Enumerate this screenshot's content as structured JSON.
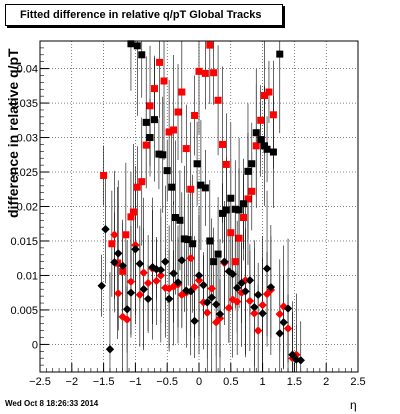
{
  "chart_data": {
    "type": "scatter",
    "title": "Fitted difference in relative q/pT  Global Tracks",
    "xlabel": "η",
    "ylabel": "difference in relative q/pT",
    "xlim": [
      -2.5,
      2.5
    ],
    "ylim": [
      -0.004,
      0.044
    ],
    "x_ticks": [
      -2.5,
      -2,
      -1.5,
      -1,
      -0.5,
      0,
      0.5,
      1,
      1.5,
      2,
      2.5
    ],
    "x_tick_labels": [
      "−2.5",
      "−2",
      "−1.5",
      "−1",
      "−0.5",
      "0",
      "0.5",
      "1",
      "1.5",
      "2",
      "2.5"
    ],
    "y_ticks": [
      0,
      0.005,
      0.01,
      0.015,
      0.02,
      0.025,
      0.03,
      0.035,
      0.04
    ],
    "y_tick_labels": [
      "0",
      "0.005",
      "0.01",
      "0.015",
      "0.02",
      "0.025",
      "0.03",
      "0.035",
      "0.04"
    ],
    "grid": true,
    "colors": {
      "red": "#ff0000",
      "black": "#000000"
    },
    "series": [
      {
        "marker": "square",
        "color": "#ff0000",
        "points": [
          [
            -1.5,
            0.0245
          ],
          [
            -1.37,
            0.0146
          ],
          [
            -1.28,
            0.0118
          ],
          [
            -1.2,
            0.0106
          ],
          [
            -1.15,
            0.0159
          ],
          [
            -1.07,
            0.0185
          ],
          [
            -1.03,
            0.0192
          ],
          [
            -0.97,
            0.0228
          ],
          [
            -0.9,
            0.0236
          ],
          [
            -0.83,
            0.0289
          ],
          [
            -0.77,
            0.0346
          ],
          [
            -0.7,
            0.0371
          ],
          [
            -0.62,
            0.0409
          ],
          [
            -0.55,
            0.0382
          ],
          [
            -0.47,
            0.0308
          ],
          [
            -0.4,
            0.0311
          ],
          [
            -0.33,
            0.0337
          ],
          [
            -0.27,
            0.0366
          ],
          [
            -0.2,
            0.0284
          ],
          [
            -0.13,
            0.0225
          ],
          [
            -0.07,
            0.0332
          ],
          [
            0.0,
            0.0396
          ],
          [
            0.1,
            0.0393
          ],
          [
            0.17,
            0.0434
          ],
          [
            0.23,
            0.0394
          ],
          [
            0.3,
            0.0354
          ],
          [
            0.37,
            0.029
          ],
          [
            0.43,
            0.0261
          ],
          [
            0.5,
            0.0162
          ],
          [
            0.57,
            0.012
          ],
          [
            0.63,
            0.0154
          ],
          [
            0.7,
            0.0184
          ],
          [
            0.77,
            0.0211
          ],
          [
            0.83,
            0.0222
          ],
          [
            0.9,
            0.0288
          ],
          [
            0.97,
            0.0325
          ],
          [
            1.03,
            0.0361
          ],
          [
            1.1,
            0.0366
          ],
          [
            1.17,
            0.0333
          ]
        ]
      },
      {
        "marker": "square",
        "color": "#000000",
        "points": [
          [
            -1.07,
            0.0436
          ],
          [
            -0.97,
            0.0433
          ],
          [
            -0.9,
            0.042
          ],
          [
            -0.83,
            0.0322
          ],
          [
            -0.77,
            0.03
          ],
          [
            -0.7,
            0.0326
          ],
          [
            -0.63,
            0.0276
          ],
          [
            -0.57,
            0.0275
          ],
          [
            -0.5,
            0.0252
          ],
          [
            -0.43,
            0.0228
          ],
          [
            -0.37,
            0.0184
          ],
          [
            -0.3,
            0.018
          ],
          [
            -0.23,
            0.0153
          ],
          [
            -0.17,
            0.0152
          ],
          [
            -0.1,
            0.0146
          ],
          [
            -0.03,
            0.0262
          ],
          [
            0.03,
            0.0231
          ],
          [
            0.1,
            0.0227
          ],
          [
            0.17,
            0.015
          ],
          [
            0.23,
            0.012
          ],
          [
            0.3,
            0.0131
          ],
          [
            0.37,
            0.019
          ],
          [
            0.43,
            0.0195
          ],
          [
            0.5,
            0.0212
          ],
          [
            0.57,
            0.0196
          ],
          [
            0.63,
            0.0195
          ],
          [
            0.7,
            0.0204
          ],
          [
            0.77,
            0.0251
          ],
          [
            0.83,
            0.0262
          ],
          [
            0.9,
            0.0307
          ],
          [
            0.97,
            0.0297
          ],
          [
            1.03,
            0.0288
          ],
          [
            1.07,
            0.0283
          ],
          [
            1.17,
            0.0279
          ],
          [
            1.27,
            0.0421
          ]
        ]
      },
      {
        "marker": "diamond",
        "color": "#ff0000",
        "points": [
          [
            -1.33,
            0.0159
          ],
          [
            -1.27,
            0.0074
          ],
          [
            -1.2,
            0.004
          ],
          [
            -1.13,
            0.0036
          ],
          [
            -1.07,
            0.0091
          ],
          [
            -1.0,
            0.0144
          ],
          [
            -0.93,
            0.0072
          ],
          [
            -0.87,
            0.0104
          ],
          [
            -0.8,
            0.0089
          ],
          [
            -0.73,
            0.011
          ],
          [
            -0.67,
            0.0092
          ],
          [
            -0.6,
            0.01
          ],
          [
            -0.53,
            0.0082
          ],
          [
            -0.47,
            0.0081
          ],
          [
            -0.4,
            0.0084
          ],
          [
            -0.33,
            0.0087
          ],
          [
            -0.27,
            0.0072
          ],
          [
            -0.2,
            0.0075
          ],
          [
            -0.13,
            0.0125
          ],
          [
            -0.07,
            0.0083
          ],
          [
            0.0,
            0.0093
          ],
          [
            0.07,
            0.0061
          ],
          [
            0.13,
            0.0046
          ],
          [
            0.2,
            0.0081
          ],
          [
            0.27,
            0.0032
          ],
          [
            0.33,
            0.0038
          ],
          [
            0.4,
            0.0118
          ],
          [
            0.47,
            0.0053
          ],
          [
            0.53,
            0.0065
          ],
          [
            0.6,
            0.0062
          ],
          [
            0.67,
            0.0075
          ],
          [
            0.73,
            0.0093
          ],
          [
            0.8,
            0.0063
          ],
          [
            0.87,
            0.0045
          ],
          [
            0.93,
            0.002
          ],
          [
            1.0,
            0.0057
          ],
          [
            1.07,
            0.0073
          ],
          [
            1.13,
            0.0079
          ],
          [
            1.27,
            0.0044
          ],
          [
            1.33,
            0.0055
          ],
          [
            1.4,
            0.0023
          ],
          [
            1.47,
            -0.002
          ],
          [
            1.53,
            -0.0015
          ]
        ]
      },
      {
        "marker": "diamond",
        "color": "#000000",
        "points": [
          [
            -1.53,
            0.0085
          ],
          [
            -1.47,
            0.0167
          ],
          [
            -1.4,
            -0.0007
          ],
          [
            -1.33,
            0.0119
          ],
          [
            -1.27,
            0.0132
          ],
          [
            -1.2,
            0.0114
          ],
          [
            -1.13,
            0.0051
          ],
          [
            -1.07,
            0.0075
          ],
          [
            -1.0,
            0.0138
          ],
          [
            -0.93,
            0.0117
          ],
          [
            -0.87,
            0.008
          ],
          [
            -0.8,
            0.0066
          ],
          [
            -0.73,
            0.0112
          ],
          [
            -0.67,
            0.0109
          ],
          [
            -0.6,
            0.0108
          ],
          [
            -0.53,
            0.012
          ],
          [
            -0.47,
            0.0066
          ],
          [
            -0.4,
            0.0103
          ],
          [
            -0.33,
            0.009
          ],
          [
            -0.27,
            0.0122
          ],
          [
            -0.2,
            0.0078
          ],
          [
            -0.13,
            0.0077
          ],
          [
            -0.07,
            0.0034
          ],
          [
            0.0,
            0.01
          ],
          [
            0.07,
            0.0086
          ],
          [
            0.13,
            0.0061
          ],
          [
            0.2,
            0.0068
          ],
          [
            0.27,
            0.0058
          ],
          [
            0.33,
            0.0044
          ],
          [
            0.4,
            0.012
          ],
          [
            0.47,
            0.0106
          ],
          [
            0.53,
            0.0102
          ],
          [
            0.6,
            0.0082
          ],
          [
            0.67,
            0.0089
          ],
          [
            0.73,
            0.0077
          ],
          [
            0.8,
            0.0093
          ],
          [
            0.87,
            0.0054
          ],
          [
            0.93,
            0.0072
          ],
          [
            1.0,
            0.0045
          ],
          [
            1.07,
            0.011
          ],
          [
            1.13,
            0.0083
          ],
          [
            1.27,
            0.0016
          ],
          [
            1.33,
            0.0032
          ],
          [
            1.4,
            0.0052
          ],
          [
            1.47,
            -0.0015
          ],
          [
            1.53,
            -0.0022
          ],
          [
            1.6,
            -0.0023
          ]
        ]
      }
    ]
  },
  "footer": {
    "timestamp": "Wed Oct  8 18:26:33 2014"
  }
}
